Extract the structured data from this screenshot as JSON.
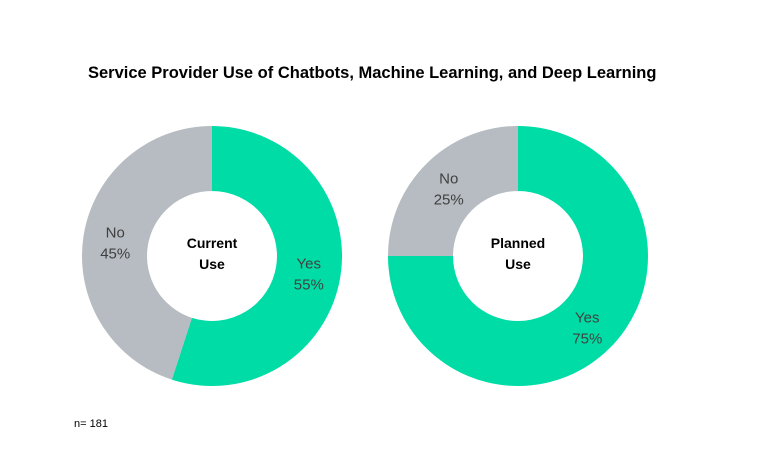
{
  "title": "Service Provider Use of Chatbots, Machine Learning, and Deep Learning",
  "footnote": "n= 181",
  "colors": {
    "yes": "#00DCA5",
    "no": "#B6BCC1"
  },
  "chart_data": [
    {
      "type": "pie",
      "donut": true,
      "center_label": [
        "Current",
        "Use"
      ],
      "slices": [
        {
          "label": "Yes",
          "value": 55,
          "value_label": "55%"
        },
        {
          "label": "No",
          "value": 45,
          "value_label": "45%"
        }
      ]
    },
    {
      "type": "pie",
      "donut": true,
      "center_label": [
        "Planned",
        "Use"
      ],
      "slices": [
        {
          "label": "Yes",
          "value": 75,
          "value_label": "75%"
        },
        {
          "label": "No",
          "value": 25,
          "value_label": "25%"
        }
      ]
    }
  ]
}
